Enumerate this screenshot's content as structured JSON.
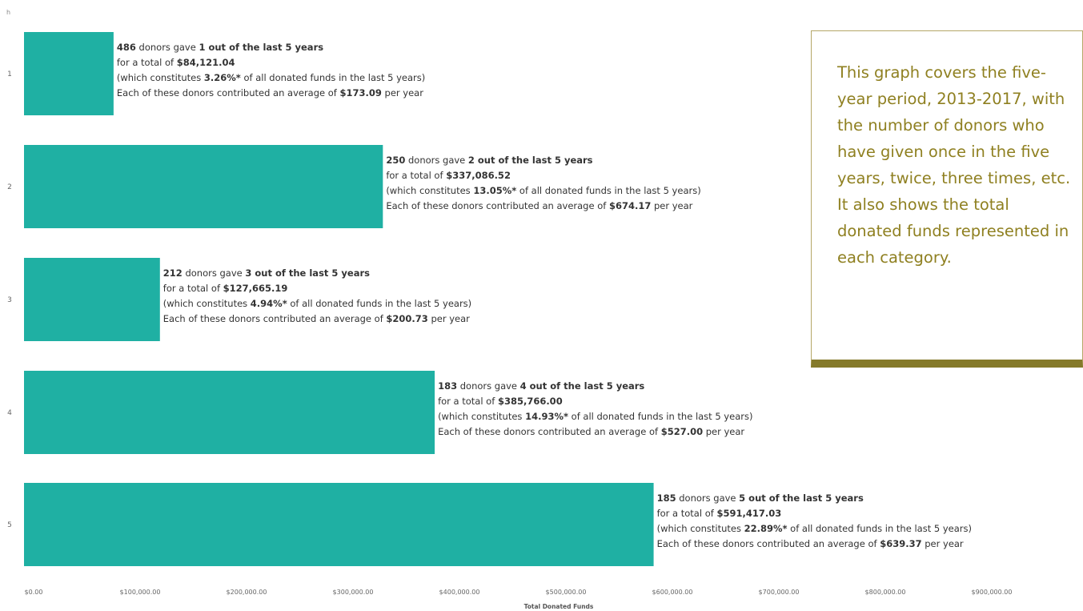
{
  "corner_label": "h",
  "note": {
    "text": "This graph covers the five-year period, 2013-2017, with the number of donors who have given once in the five years, twice, three times, etc. It also shows the total donated funds represented in each category."
  },
  "chart_data": {
    "type": "bar",
    "orientation": "horizontal",
    "categories": [
      "1",
      "2",
      "3",
      "4",
      "5"
    ],
    "values": [
      84121.04,
      337086.52,
      127665.19,
      385766.0,
      591417.03
    ],
    "xlabel": "Total Donated Funds",
    "ylabel": "",
    "xlim": [
      0,
      990000
    ],
    "x_ticks": [
      "$0.00",
      "$100,000.00",
      "$200,000.00",
      "$300,000.00",
      "$400,000.00",
      "$500,000.00",
      "$600,000.00",
      "$700,000.00",
      "$800,000.00",
      "$900,000.00"
    ],
    "bar_color": "#1fb0a3",
    "annotations": [
      {
        "donors": "486",
        "years": "1 out of the last 5 years",
        "total": "$84,121.04",
        "percent": "3.26%*",
        "average": "$173.09"
      },
      {
        "donors": "250",
        "years": "2 out of the last 5 years",
        "total": "$337,086.52",
        "percent": "13.05%*",
        "average": "$674.17"
      },
      {
        "donors": "212",
        "years": "3 out of the last 5 years",
        "total": "$127,665.19",
        "percent": "4.94%*",
        "average": "$200.73"
      },
      {
        "donors": "183",
        "years": "4 out of the last 5 years",
        "total": "$385,766.00",
        "percent": "14.93%*",
        "average": "$527.00"
      },
      {
        "donors": "185",
        "years": "5 out of the last 5 years",
        "total": "$591,417.03",
        "percent": "22.89%*",
        "average": "$639.37"
      }
    ],
    "annotation_text": {
      "gave": " donors gave ",
      "total_prefix": "for a total of ",
      "constitutes_prefix": "(which constitutes ",
      "constitutes_suffix": " of all donated funds in the last 5 years)",
      "average_prefix": "Each of these donors contributed an average of ",
      "average_suffix": " per year"
    }
  }
}
